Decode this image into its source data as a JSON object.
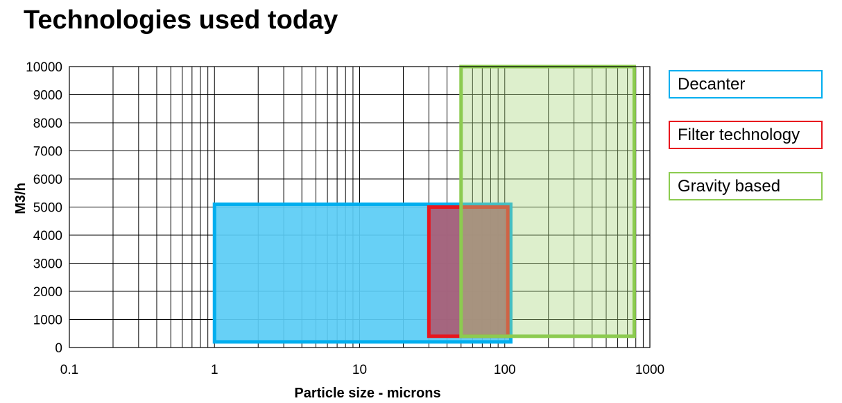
{
  "title": "Technologies used today",
  "chart_data": {
    "type": "area",
    "title": "Technologies used today",
    "xlabel": "Particle size - microns",
    "ylabel": "M3/h",
    "x_scale": "log",
    "xlim": [
      0.1,
      1000
    ],
    "ylim": [
      0,
      10000
    ],
    "x_ticks": [
      "0.1",
      "1",
      "10",
      "100",
      "1000"
    ],
    "y_ticks": [
      "0",
      "1000",
      "2000",
      "3000",
      "4000",
      "5000",
      "6000",
      "7000",
      "8000",
      "9000",
      "10000"
    ],
    "grid": true,
    "legend_position": "right",
    "series": [
      {
        "name": "Decanter",
        "x_range": [
          1,
          110
        ],
        "y_range": [
          200,
          5100
        ],
        "stroke": "#00AEEF",
        "fill": "#5ACCF5",
        "fill_opacity": 0.92
      },
      {
        "name": "Filter technology",
        "x_range": [
          30,
          105
        ],
        "y_range": [
          400,
          5000
        ],
        "stroke": "#E8161E",
        "fill": "#B0536A",
        "fill_opacity": 0.85
      },
      {
        "name": "Gravity based",
        "x_range": [
          50,
          780
        ],
        "y_range": [
          400,
          10000
        ],
        "stroke": "#8CCB50",
        "fill": "#A9D880",
        "fill_opacity": 0.4
      }
    ]
  }
}
